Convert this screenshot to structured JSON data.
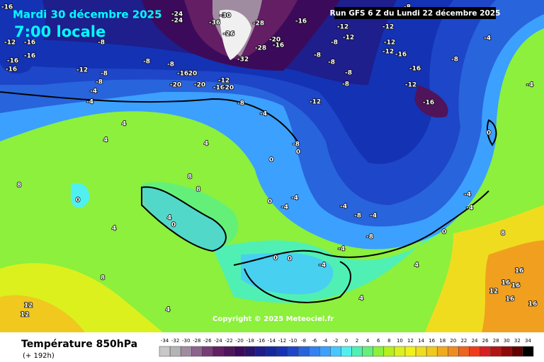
{
  "header": {
    "date": "Mardi 30 décembre 2025",
    "time": "7:00 locale",
    "run": "Run GFS 6 Z du Lundi 22 décembre 2025",
    "copyright": "Copyright © 2025 Meteociel.fr"
  },
  "legend": {
    "title": "Température 850hPa",
    "subtitle": "(+ 192h)",
    "ticks": [
      -34,
      -32,
      -30,
      -28,
      -26,
      -24,
      -22,
      -20,
      -18,
      -16,
      -14,
      -12,
      -10,
      -8,
      -6,
      -4,
      -2,
      0,
      2,
      4,
      6,
      8,
      10,
      12,
      14,
      16,
      18,
      20,
      22,
      24,
      26,
      28,
      30,
      32,
      34
    ],
    "colors": [
      "#c8c8c8",
      "#b4b4b4",
      "#a08ca0",
      "#8c648c",
      "#783c78",
      "#641e64",
      "#50145a",
      "#3c0a5a",
      "#28146e",
      "#1e1e8c",
      "#1428a0",
      "#1432b4",
      "#1e46c8",
      "#2864dc",
      "#3282f0",
      "#3ca0ff",
      "#46c8ff",
      "#50f0f0",
      "#50f0b4",
      "#64f078",
      "#8cf03c",
      "#b4f01e",
      "#dcf01e",
      "#f0f01e",
      "#f0dc1e",
      "#f0c81e",
      "#f0aa1e",
      "#f08c1e",
      "#f0641e",
      "#f03c1e",
      "#dc1e1e",
      "#b41414",
      "#8c0a0a",
      "#640000",
      "#000000"
    ]
  },
  "map": {
    "labels": [
      -16,
      -24,
      -24,
      -30,
      -36,
      -26,
      -28,
      -32,
      -28,
      -20,
      -16,
      -16,
      -12,
      -12,
      -12,
      -12,
      -16,
      -8,
      -12,
      -16,
      -12,
      -16,
      -8,
      -4,
      -8,
      -8,
      -8,
      -8,
      -8,
      -12,
      -8,
      -4,
      -16,
      20,
      -20,
      -20,
      -12,
      -16,
      -20,
      -12,
      -16,
      -16,
      -16,
      -16,
      -8,
      -8,
      -8,
      -12,
      -8,
      -8,
      -4,
      -4,
      4,
      4,
      4,
      8,
      8,
      0,
      4,
      0,
      4,
      0,
      0,
      -4,
      -4,
      0,
      -8,
      -4,
      -8,
      -4,
      8,
      8,
      12,
      12,
      4,
      4,
      4,
      0,
      0,
      -4,
      -4,
      -8,
      -4,
      -4,
      0,
      0,
      8,
      16,
      16,
      16,
      12,
      16,
      16,
      -4
    ]
  }
}
